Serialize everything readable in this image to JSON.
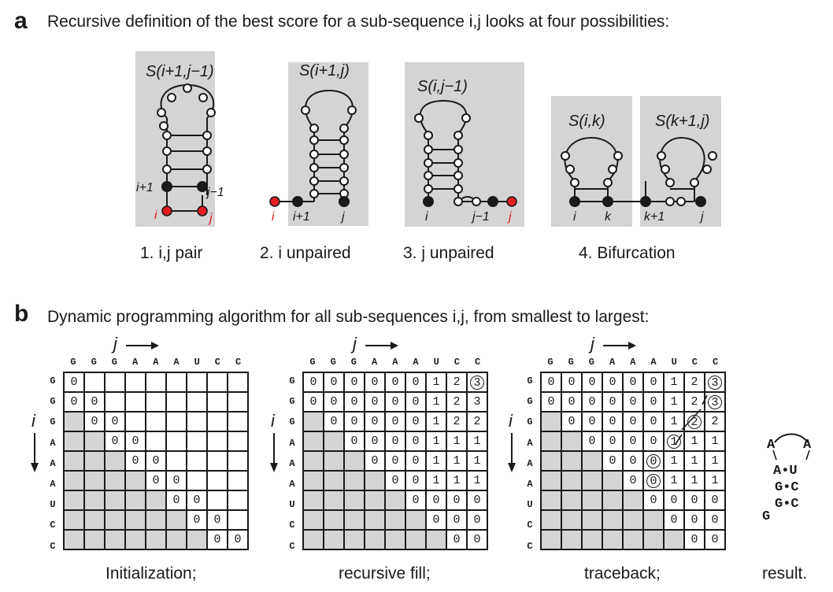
{
  "panel_a": {
    "label": "a",
    "title": "Recursive definition of the best score for a sub-sequence i,j looks at four possibilities:",
    "cases": [
      {
        "caption": "1. i,j pair",
        "score": "S(i+1,j−1)",
        "labels": [
          "i+1",
          "j−1",
          "i",
          "j"
        ]
      },
      {
        "caption": "2. i unpaired",
        "score": "S(i+1,j)",
        "labels": [
          "i",
          "i+1",
          "j"
        ]
      },
      {
        "caption": "3. j unpaired",
        "score": "S(i,j−1)",
        "labels": [
          "i",
          "j−1",
          "j"
        ]
      },
      {
        "caption": "4. Bifurcation",
        "scores": [
          "S(i,k)",
          "S(k+1,j)"
        ],
        "labels": [
          "i",
          "k",
          "k+1",
          "j"
        ]
      }
    ],
    "colors": {
      "unpaired_end": "#e31e24",
      "paired": "#1a1a1a",
      "shade": "#d4d4d4"
    }
  },
  "panel_b": {
    "label": "b",
    "title": "Dynamic programming algorithm for all sub-sequences i,j, from smallest to largest:",
    "sequence": [
      "G",
      "G",
      "G",
      "A",
      "A",
      "A",
      "U",
      "C",
      "C"
    ],
    "axis_j": "j",
    "axis_i": "i",
    "matrices": [
      {
        "caption": "Initialization;",
        "rows": [
          [
            "0",
            "",
            "",
            "",
            "",
            "",
            "",
            "",
            ""
          ],
          [
            "0",
            "0",
            "",
            "",
            "",
            "",
            "",
            "",
            ""
          ],
          [
            "",
            "0",
            "0",
            "",
            "",
            "",
            "",
            "",
            ""
          ],
          [
            "",
            "",
            "0",
            "0",
            "",
            "",
            "",
            "",
            ""
          ],
          [
            "",
            "",
            "",
            "0",
            "0",
            "",
            "",
            "",
            ""
          ],
          [
            "",
            "",
            "",
            "",
            "0",
            "0",
            "",
            "",
            ""
          ],
          [
            "",
            "",
            "",
            "",
            "",
            "0",
            "0",
            "",
            ""
          ],
          [
            "",
            "",
            "",
            "",
            "",
            "",
            "0",
            "0",
            ""
          ],
          [
            "",
            "",
            "",
            "",
            "",
            "",
            "",
            "0",
            "0"
          ]
        ],
        "circled": []
      },
      {
        "caption": "recursive fill;",
        "rows": [
          [
            "0",
            "0",
            "0",
            "0",
            "0",
            "0",
            "1",
            "2",
            "3"
          ],
          [
            "0",
            "0",
            "0",
            "0",
            "0",
            "0",
            "1",
            "2",
            "3"
          ],
          [
            "",
            "0",
            "0",
            "0",
            "0",
            "0",
            "1",
            "2",
            "2"
          ],
          [
            "",
            "",
            "0",
            "0",
            "0",
            "0",
            "1",
            "1",
            "1"
          ],
          [
            "",
            "",
            "",
            "0",
            "0",
            "0",
            "1",
            "1",
            "1"
          ],
          [
            "",
            "",
            "",
            "",
            "0",
            "0",
            "1",
            "1",
            "1"
          ],
          [
            "",
            "",
            "",
            "",
            "",
            "0",
            "0",
            "0",
            "0"
          ],
          [
            "",
            "",
            "",
            "",
            "",
            "",
            "0",
            "0",
            "0"
          ],
          [
            "",
            "",
            "",
            "",
            "",
            "",
            "",
            "0",
            "0"
          ]
        ],
        "circled": [
          [
            0,
            8
          ]
        ]
      },
      {
        "caption": "traceback;",
        "rows": [
          [
            "0",
            "0",
            "0",
            "0",
            "0",
            "0",
            "1",
            "2",
            "3"
          ],
          [
            "0",
            "0",
            "0",
            "0",
            "0",
            "0",
            "1",
            "2",
            "3"
          ],
          [
            "",
            "0",
            "0",
            "0",
            "0",
            "0",
            "1",
            "2",
            "2"
          ],
          [
            "",
            "",
            "0",
            "0",
            "0",
            "0",
            "1",
            "1",
            "1"
          ],
          [
            "",
            "",
            "",
            "0",
            "0",
            "0",
            "1",
            "1",
            "1"
          ],
          [
            "",
            "",
            "",
            "",
            "0",
            "0",
            "1",
            "1",
            "1"
          ],
          [
            "",
            "",
            "",
            "",
            "",
            "0",
            "0",
            "0",
            "0"
          ],
          [
            "",
            "",
            "",
            "",
            "",
            "",
            "0",
            "0",
            "0"
          ],
          [
            "",
            "",
            "",
            "",
            "",
            "",
            "",
            "0",
            "0"
          ]
        ],
        "circled": [
          [
            0,
            8
          ],
          [
            1,
            8
          ],
          [
            2,
            7
          ],
          [
            3,
            6
          ],
          [
            4,
            5
          ],
          [
            5,
            5
          ]
        ]
      }
    ],
    "result": {
      "caption": "result.",
      "loop": [
        "A",
        "A"
      ],
      "pairs": [
        [
          "A",
          "•",
          "U"
        ],
        [
          "G",
          "•",
          "C"
        ],
        [
          "G",
          "•",
          "C"
        ]
      ],
      "tail": "G"
    }
  }
}
